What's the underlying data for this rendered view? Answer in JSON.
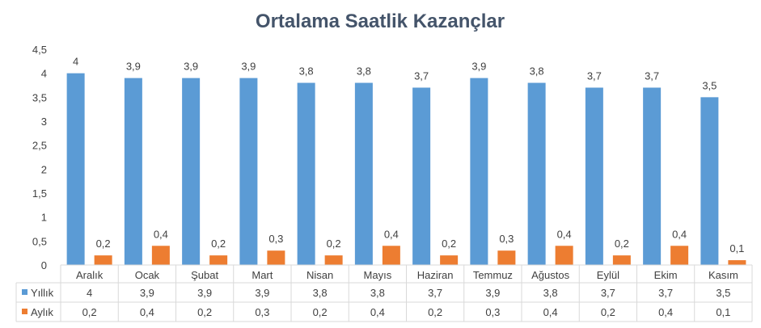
{
  "chart_data": {
    "type": "bar",
    "title": "Ortalama Saatlik Kazançlar",
    "categories": [
      "Aralık",
      "Ocak",
      "Şubat",
      "Mart",
      "Nisan",
      "Mayıs",
      "Haziran",
      "Temmuz",
      "Ağustos",
      "Eylül",
      "Ekim",
      "Kasım"
    ],
    "series": [
      {
        "name": "Yıllık",
        "color": "#5B9BD5",
        "values": [
          4,
          3.9,
          3.9,
          3.9,
          3.8,
          3.8,
          3.7,
          3.9,
          3.8,
          3.7,
          3.7,
          3.5
        ],
        "labels": [
          "4",
          "3,9",
          "3,9",
          "3,9",
          "3,8",
          "3,8",
          "3,7",
          "3,9",
          "3,8",
          "3,7",
          "3,7",
          "3,5"
        ]
      },
      {
        "name": "Aylık",
        "color": "#ED7D31",
        "values": [
          0.2,
          0.4,
          0.2,
          0.3,
          0.2,
          0.4,
          0.2,
          0.3,
          0.4,
          0.2,
          0.4,
          0.1
        ],
        "labels": [
          "0,2",
          "0,4",
          "0,2",
          "0,3",
          "0,2",
          "0,4",
          "0,2",
          "0,3",
          "0,4",
          "0,2",
          "0,4",
          "0,1"
        ]
      }
    ],
    "ylim": [
      0,
      4.5
    ],
    "yticks": [
      "0",
      "0,5",
      "1",
      "1,5",
      "2",
      "2,5",
      "3",
      "3,5",
      "4",
      "4,5"
    ],
    "grid": false,
    "legend": "data-table"
  }
}
